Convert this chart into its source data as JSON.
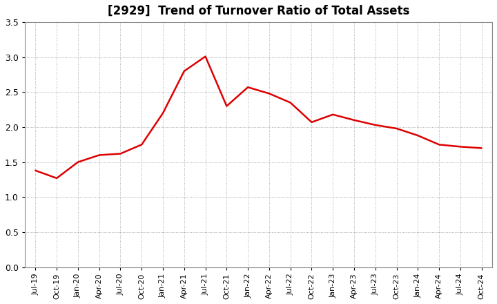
{
  "title": "[2929]  Trend of Turnover Ratio of Total Assets",
  "line_color": "#dd0000",
  "background_color": "#ffffff",
  "grid_color": "#999999",
  "ylim": [
    0.0,
    3.5
  ],
  "yticks": [
    0.0,
    0.5,
    1.0,
    1.5,
    2.0,
    2.5,
    3.0,
    3.5
  ],
  "labels": [
    "Jul-19",
    "Oct-19",
    "Jan-20",
    "Apr-20",
    "Jul-20",
    "Oct-20",
    "Jan-21",
    "Apr-21",
    "Jul-21",
    "Oct-21",
    "Jan-22",
    "Apr-22",
    "Jul-22",
    "Oct-22",
    "Jan-23",
    "Apr-23",
    "Jul-23",
    "Oct-23",
    "Jan-24",
    "Apr-24",
    "Jul-24",
    "Oct-24"
  ],
  "values": [
    1.38,
    1.27,
    1.5,
    1.6,
    1.62,
    1.75,
    2.2,
    2.8,
    3.01,
    2.3,
    2.57,
    2.48,
    2.35,
    2.07,
    2.18,
    2.1,
    2.03,
    1.98,
    1.88,
    1.75,
    1.72,
    1.7
  ]
}
